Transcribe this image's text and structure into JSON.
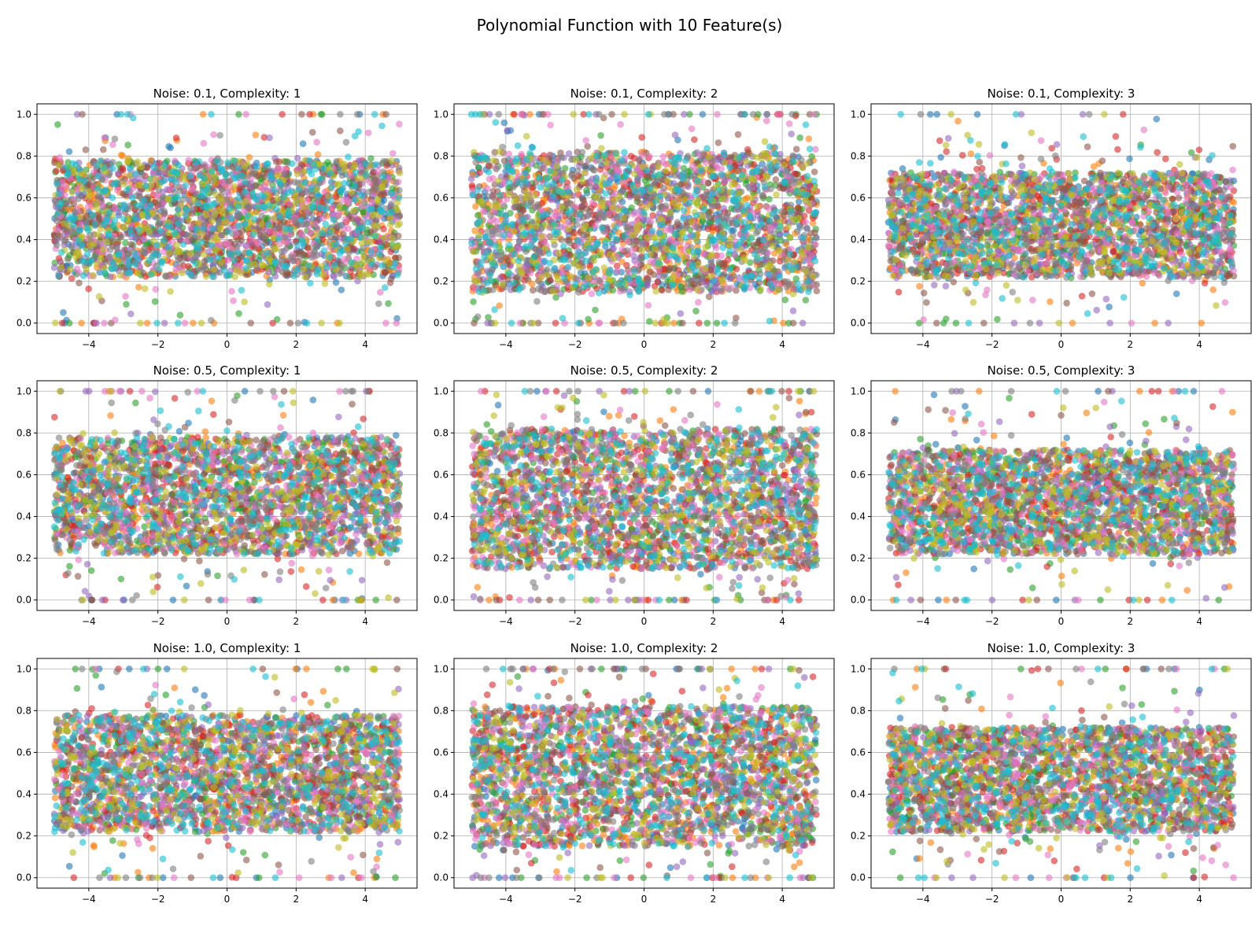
{
  "chart_data": {
    "type": "scatter",
    "title": "Polynomial Function with 10 Feature(s)",
    "n_features": 10,
    "series_colors": [
      "#1f77b4",
      "#ff7f0e",
      "#2ca02c",
      "#d62728",
      "#9467bd",
      "#8c564b",
      "#e377c2",
      "#7f7f7f",
      "#bcbd22",
      "#17becf"
    ],
    "marker_alpha": 0.6,
    "grid": true,
    "xlim": [
      -5.5,
      5.5
    ],
    "ylim": [
      -0.05,
      1.05
    ],
    "x_ticks": [
      -4,
      -2,
      0,
      2,
      4
    ],
    "y_ticks": [
      0.0,
      0.2,
      0.4,
      0.6,
      0.8,
      1.0
    ],
    "x_tick_labels": [
      "−4",
      "−2",
      "0",
      "2",
      "4"
    ],
    "y_tick_labels": [
      "0.0",
      "0.2",
      "0.4",
      "0.6",
      "0.8",
      "1.0"
    ],
    "x_range": [
      -5,
      5
    ],
    "y_range": [
      0,
      1
    ],
    "panels": [
      {
        "title": "Noise: 0.1, Complexity: 1",
        "noise": 0.1,
        "complexity": 1,
        "band": [
          0.22,
          0.78
        ]
      },
      {
        "title": "Noise: 0.1, Complexity: 2",
        "noise": 0.1,
        "complexity": 2,
        "band": [
          0.15,
          0.82
        ]
      },
      {
        "title": "Noise: 0.1, Complexity: 3",
        "noise": 0.1,
        "complexity": 3,
        "band": [
          0.22,
          0.72
        ]
      },
      {
        "title": "Noise: 0.5, Complexity: 1",
        "noise": 0.5,
        "complexity": 1,
        "band": [
          0.22,
          0.78
        ]
      },
      {
        "title": "Noise: 0.5, Complexity: 2",
        "noise": 0.5,
        "complexity": 2,
        "band": [
          0.15,
          0.82
        ]
      },
      {
        "title": "Noise: 0.5, Complexity: 3",
        "noise": 0.5,
        "complexity": 3,
        "band": [
          0.22,
          0.72
        ]
      },
      {
        "title": "Noise: 1.0, Complexity: 1",
        "noise": 1.0,
        "complexity": 1,
        "band": [
          0.22,
          0.78
        ]
      },
      {
        "title": "Noise: 1.0, Complexity: 2",
        "noise": 1.0,
        "complexity": 2,
        "band": [
          0.15,
          0.82
        ]
      },
      {
        "title": "Noise: 1.0, Complexity: 3",
        "noise": 1.0,
        "complexity": 3,
        "band": [
          0.22,
          0.72
        ]
      }
    ]
  }
}
